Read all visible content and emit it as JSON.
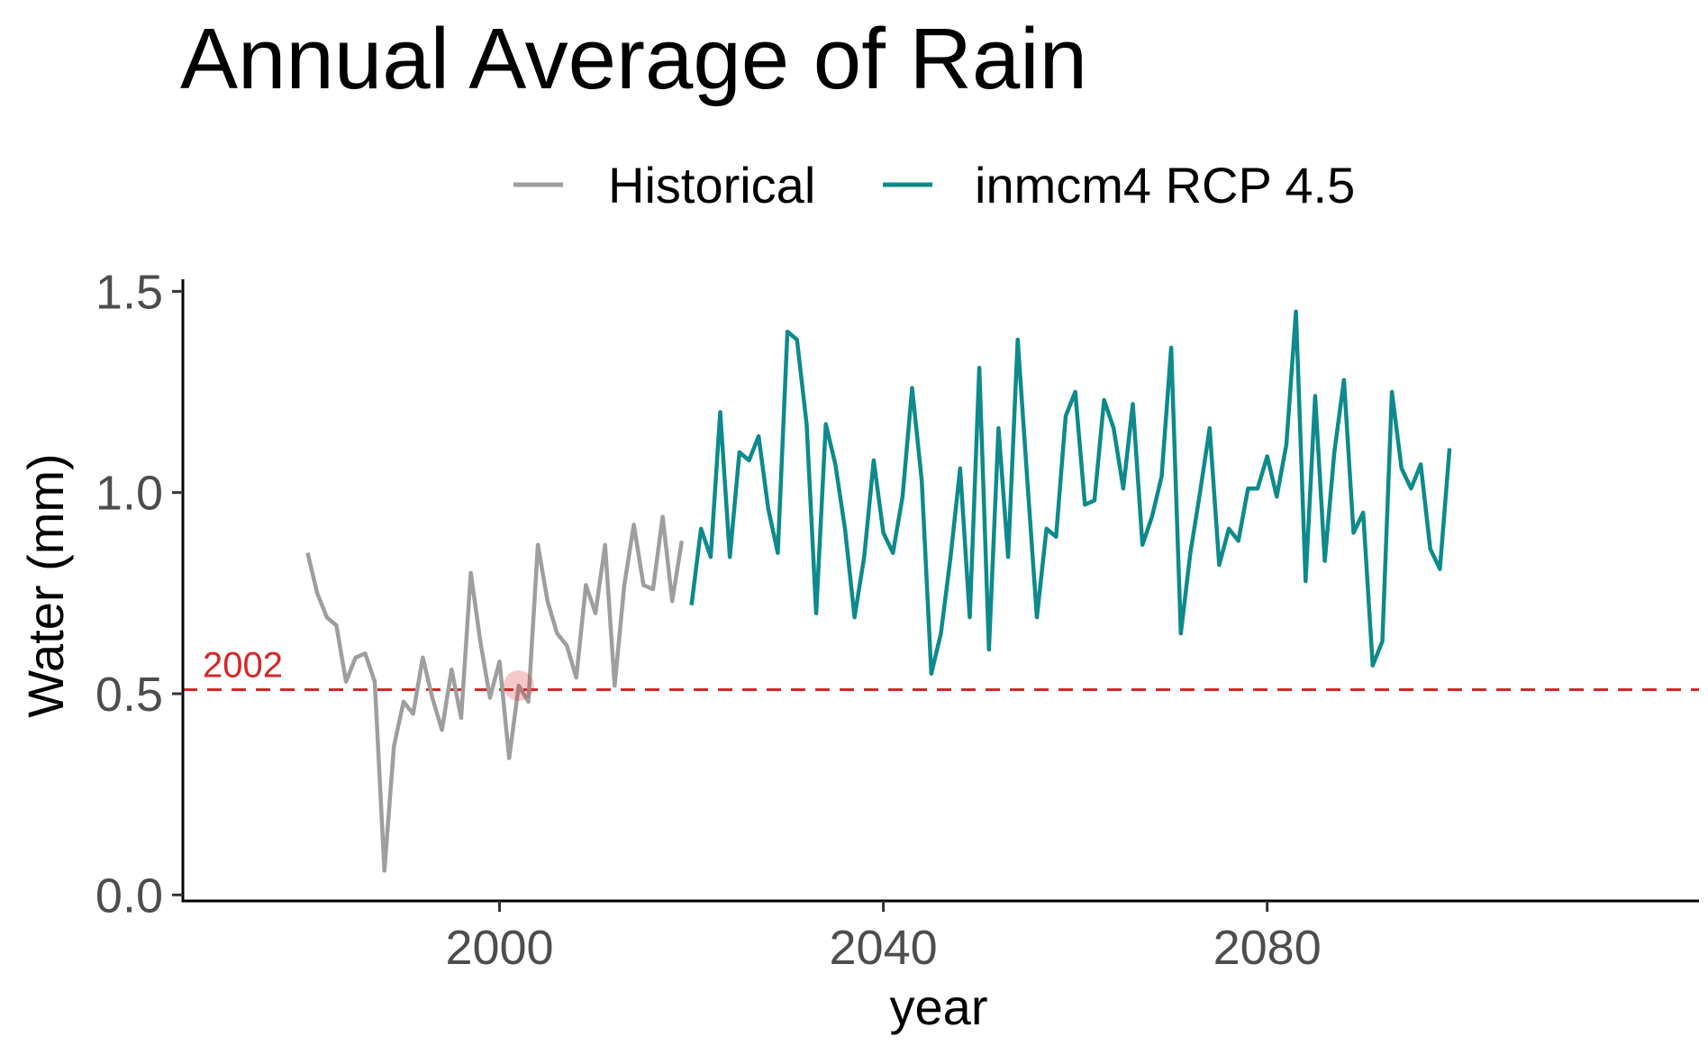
{
  "chart_data": {
    "type": "line",
    "title": "Annual Average of Rain",
    "xlabel": "year",
    "ylabel": "Water (mm)",
    "xlim": [
      1967,
      2125
    ],
    "ylim": [
      -0.015,
      1.53
    ],
    "xticks": [
      2000,
      2040,
      2080
    ],
    "yticks": [
      0.0,
      0.5,
      1.0,
      1.5
    ],
    "ytick_labels": [
      "0.0",
      "0.5",
      "1.0",
      "1.5"
    ],
    "grid": false,
    "legend_position": "top",
    "series": [
      {
        "name": "Historical",
        "color": "#9e9e9e",
        "x": [
          1980,
          1981,
          1982,
          1983,
          1984,
          1985,
          1986,
          1987,
          1988,
          1989,
          1990,
          1991,
          1992,
          1993,
          1994,
          1995,
          1996,
          1997,
          1998,
          1999,
          2000,
          2001,
          2002,
          2003,
          2004,
          2005,
          2006,
          2007,
          2008,
          2009,
          2010,
          2011,
          2012,
          2013,
          2014,
          2015,
          2016,
          2017,
          2018,
          2019
        ],
        "y": [
          0.85,
          0.75,
          0.69,
          0.67,
          0.53,
          0.59,
          0.6,
          0.53,
          0.06,
          0.37,
          0.48,
          0.45,
          0.59,
          0.49,
          0.41,
          0.56,
          0.44,
          0.8,
          0.63,
          0.49,
          0.58,
          0.34,
          0.52,
          0.48,
          0.87,
          0.73,
          0.65,
          0.62,
          0.54,
          0.77,
          0.7,
          0.87,
          0.52,
          0.77,
          0.92,
          0.77,
          0.76,
          0.94,
          0.73,
          0.88
        ]
      },
      {
        "name": "inmcm4 RCP 4.5",
        "color": "#0e8a8c",
        "x": [
          2020,
          2021,
          2022,
          2023,
          2024,
          2025,
          2026,
          2027,
          2028,
          2029,
          2030,
          2031,
          2032,
          2033,
          2034,
          2035,
          2036,
          2037,
          2038,
          2039,
          2040,
          2041,
          2042,
          2043,
          2044,
          2045,
          2046,
          2047,
          2048,
          2049,
          2050,
          2051,
          2052,
          2053,
          2054,
          2055,
          2056,
          2057,
          2058,
          2059,
          2060,
          2061,
          2062,
          2063,
          2064,
          2065,
          2066,
          2067,
          2068,
          2069,
          2070,
          2071,
          2072,
          2073,
          2074,
          2075,
          2076,
          2077,
          2078,
          2079,
          2080,
          2081,
          2082,
          2083,
          2084,
          2085,
          2086,
          2087,
          2088,
          2089,
          2090,
          2091,
          2092,
          2093,
          2094,
          2095,
          2096,
          2097,
          2098,
          2099
        ],
        "y": [
          0.72,
          0.91,
          0.84,
          1.2,
          0.84,
          1.1,
          1.08,
          1.14,
          0.96,
          0.85,
          1.4,
          1.38,
          1.17,
          0.7,
          1.17,
          1.07,
          0.91,
          0.69,
          0.84,
          1.08,
          0.9,
          0.85,
          0.99,
          1.26,
          1.03,
          0.55,
          0.65,
          0.84,
          1.06,
          0.69,
          1.31,
          0.61,
          1.16,
          0.84,
          1.38,
          1.03,
          0.69,
          0.91,
          0.89,
          1.19,
          1.25,
          0.97,
          0.98,
          1.23,
          1.16,
          1.01,
          1.22,
          0.87,
          0.94,
          1.04,
          1.36,
          0.65,
          0.85,
          1.0,
          1.16,
          0.82,
          0.91,
          0.88,
          1.01,
          1.01,
          1.09,
          0.99,
          1.12,
          1.45,
          0.78,
          1.24,
          0.83,
          1.1,
          1.28,
          0.9,
          0.95,
          0.57,
          0.63,
          1.25,
          1.06,
          1.01,
          1.07,
          0.86,
          0.81,
          1.11
        ]
      }
    ],
    "reference_line": {
      "y": 0.51,
      "label": "2002",
      "color": "#d62728",
      "style": "dashed"
    },
    "highlight_point": {
      "x": 2002,
      "y": 0.52,
      "color": "#d62728"
    }
  }
}
